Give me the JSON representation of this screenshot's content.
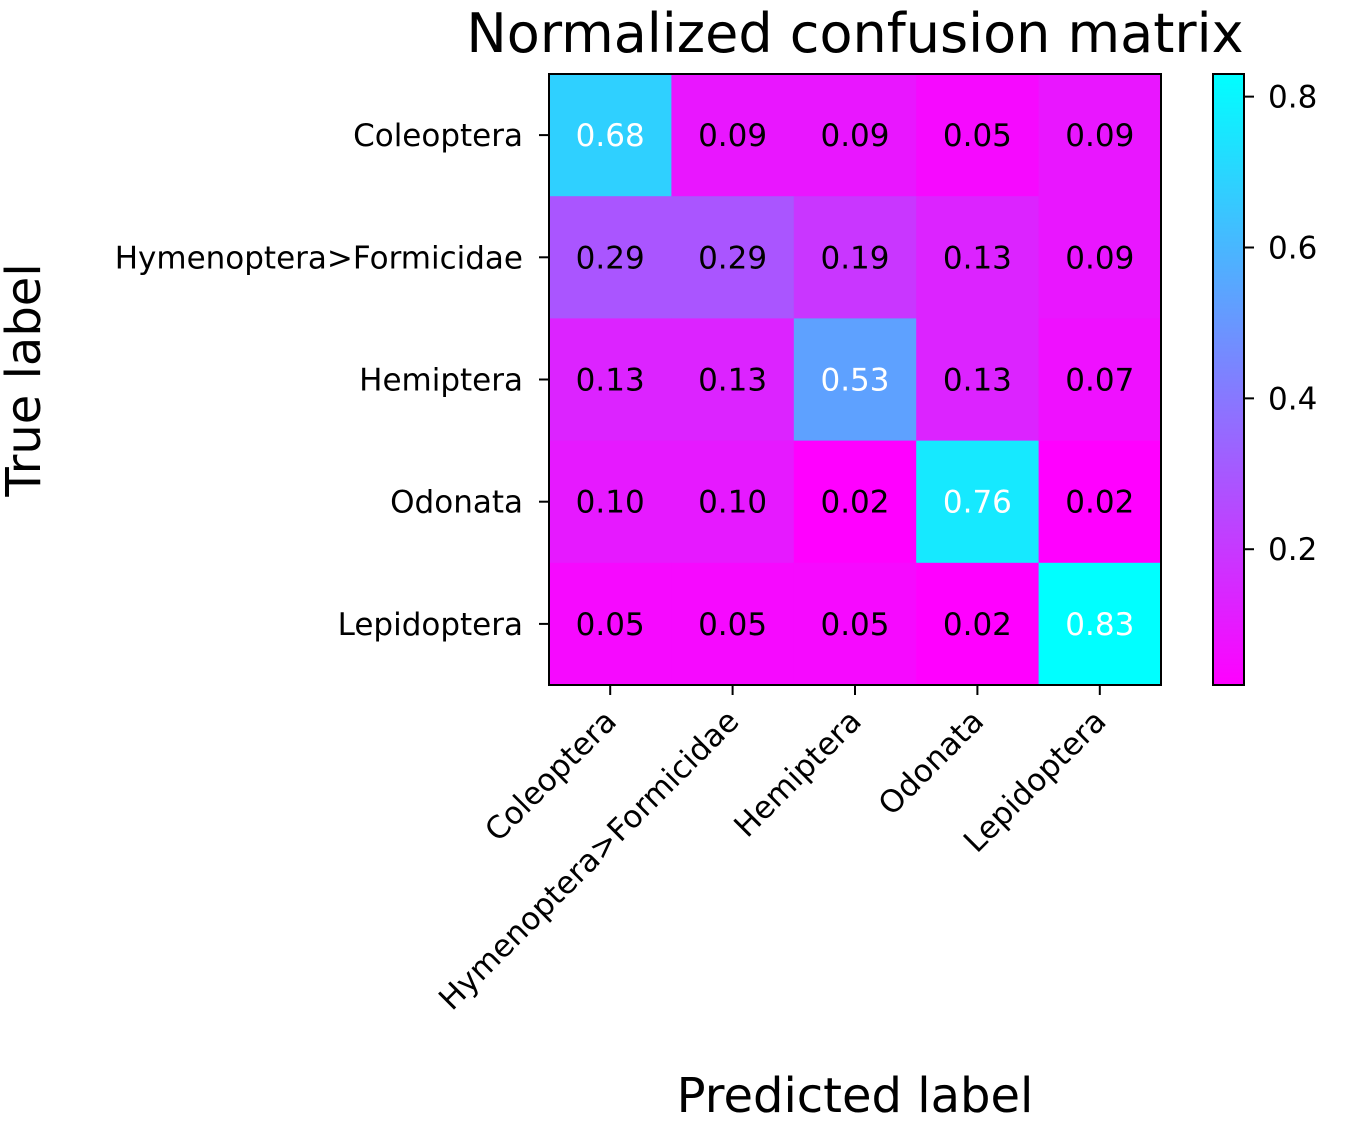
{
  "chart_data": {
    "type": "heatmap",
    "title": "Normalized confusion matrix",
    "xlabel": "Predicted label",
    "ylabel": "True label",
    "row_labels": [
      "Coleoptera",
      "Hymenoptera>Formicidae",
      "Hemiptera",
      "Odonata",
      "Lepidoptera"
    ],
    "col_labels": [
      "Coleoptera",
      "Hymenoptera>Formicidae",
      "Hemiptera",
      "Odonata",
      "Lepidoptera"
    ],
    "values": [
      [
        0.68,
        0.09,
        0.09,
        0.05,
        0.09
      ],
      [
        0.29,
        0.29,
        0.19,
        0.13,
        0.09
      ],
      [
        0.13,
        0.13,
        0.53,
        0.13,
        0.07
      ],
      [
        0.1,
        0.1,
        0.02,
        0.76,
        0.02
      ],
      [
        0.05,
        0.05,
        0.05,
        0.02,
        0.83
      ]
    ],
    "cell_labels": [
      [
        "0.68",
        "0.09",
        "0.09",
        "0.05",
        "0.09"
      ],
      [
        "0.29",
        "0.29",
        "0.19",
        "0.13",
        "0.09"
      ],
      [
        "0.13",
        "0.13",
        "0.53",
        "0.13",
        "0.07"
      ],
      [
        "0.10",
        "0.10",
        "0.02",
        "0.76",
        "0.02"
      ],
      [
        "0.05",
        "0.05",
        "0.05",
        "0.02",
        "0.83"
      ]
    ],
    "colormap": "cool_r",
    "colors": {
      "low": "#ff00ff",
      "high": "#00ffff"
    },
    "color_range": [
      0.02,
      0.83
    ],
    "text_color_threshold": 0.415,
    "text_colors": {
      "dark": "#000000",
      "light": "#ffffff"
    },
    "colorbar": {
      "ticks": [
        0.2,
        0.4,
        0.6,
        0.8
      ],
      "tick_labels": [
        "0.2",
        "0.4",
        "0.6",
        "0.8"
      ]
    },
    "grid": false
  }
}
